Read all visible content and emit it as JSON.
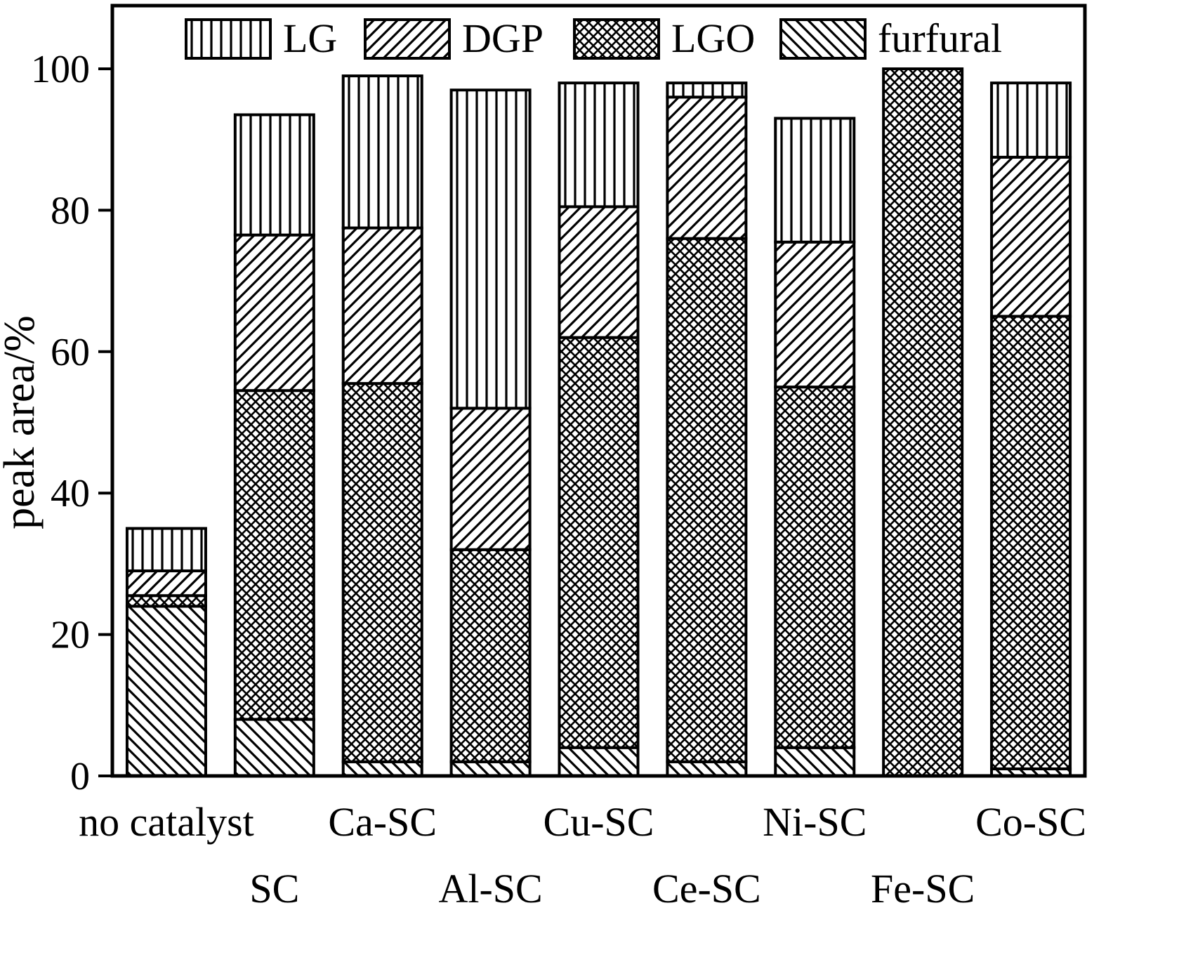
{
  "colors": {
    "stroke": "#000000",
    "background": "#ffffff"
  },
  "chart_data": {
    "type": "bar",
    "stacked": true,
    "title": "",
    "xlabel": "",
    "ylabel": "peak area/%",
    "ylim": [
      0,
      100
    ],
    "yticks": [
      0,
      20,
      40,
      60,
      80,
      100
    ],
    "grid": false,
    "legend_position": "top-inside",
    "categories": [
      "no catalyst",
      "SC",
      "Ca-SC",
      "Al-SC",
      "Cu-SC",
      "Ce-SC",
      "Ni-SC",
      "Fe-SC",
      "Co-SC"
    ],
    "series": [
      {
        "name": "furfural",
        "pattern": "diag-back-hatch",
        "values": [
          24,
          8,
          2,
          2,
          4,
          2,
          4,
          0,
          1
        ]
      },
      {
        "name": "LGO",
        "pattern": "crosshatch",
        "values": [
          1.5,
          46.5,
          53.5,
          30,
          58,
          74,
          51,
          100,
          64
        ]
      },
      {
        "name": "DGP",
        "pattern": "diag-fwd-hatch",
        "values": [
          3.5,
          22,
          22,
          20,
          18.5,
          20,
          20.5,
          0,
          22.5
        ]
      },
      {
        "name": "LG",
        "pattern": "vertical-hatch",
        "values": [
          6,
          17,
          21.5,
          45,
          17.5,
          2,
          17.5,
          0,
          10.5
        ]
      }
    ],
    "legend_order": [
      "LG",
      "DGP",
      "LGO",
      "furfural"
    ]
  }
}
